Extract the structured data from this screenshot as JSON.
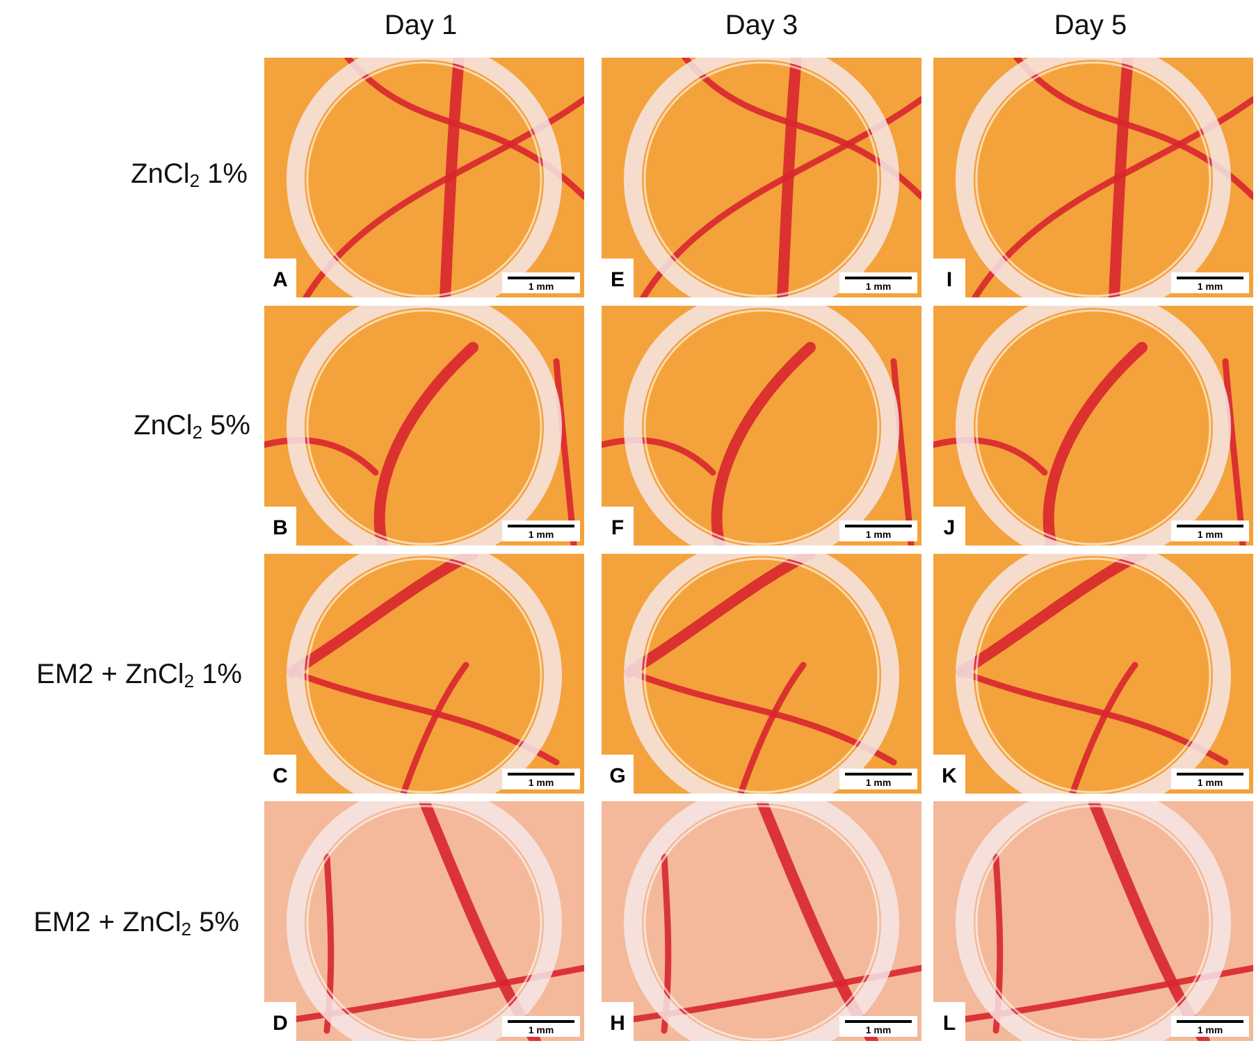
{
  "columns": [
    "Day 1",
    "Day 3",
    "Day 5"
  ],
  "rows": [
    {
      "prefix": "",
      "base": "ZnCl",
      "subscript": "2",
      "suffix": " 1%"
    },
    {
      "prefix": "",
      "base": "ZnCl",
      "subscript": "2",
      "suffix": " 5%"
    },
    {
      "prefix": "EM2 + ",
      "base": "ZnCl",
      "subscript": "2",
      "suffix": " 1%"
    },
    {
      "prefix": "EM2 + ",
      "base": "ZnCl",
      "subscript": "2",
      "suffix": " 5%"
    }
  ],
  "panel_letters": [
    [
      "A",
      "E",
      "I"
    ],
    [
      "B",
      "F",
      "J"
    ],
    [
      "C",
      "G",
      "K"
    ],
    [
      "D",
      "H",
      "L"
    ]
  ],
  "scale_bar_label": "1 mm",
  "colors": {
    "tissue": "#f4a23c",
    "vessel": "#d8262e",
    "ring": "#f6e6e6",
    "pale_tissue": "#f3b99a"
  }
}
